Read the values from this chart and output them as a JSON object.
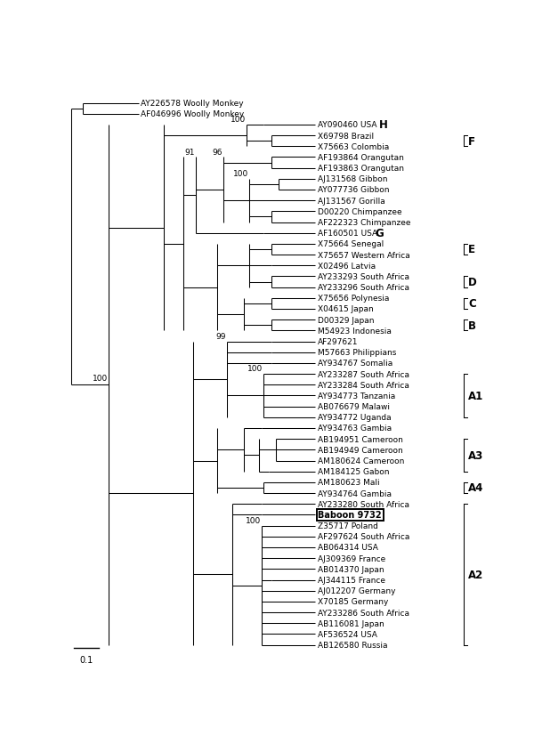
{
  "figsize": [
    6.0,
    8.37
  ],
  "dpi": 100,
  "leaves": [
    "AY226578 Woolly Monkey",
    "AF046996 Woolly Monkey",
    "AY090460 USA",
    "X69798 Brazil",
    "X75663 Colombia",
    "AF193864 Orangutan",
    "AF193863 Orangutan",
    "AJ131568 Gibbon",
    "AY077736 Gibbon",
    "AJ131567 Gorilla",
    "D00220 Chimpanzee",
    "AF222323 Chimpanzee",
    "AF160501 USA",
    "X75664 Senegal",
    "X75657 Western Africa",
    "X02496 Latvia",
    "AY233293 South Africa",
    "AY233296 South Africa",
    "X75656 Polynesia",
    "X04615 Japan",
    "D00329 Japan",
    "M54923 Indonesia",
    "AF297621",
    "M57663 Philippians",
    "AY934767 Somalia",
    "AY233287 South Africa",
    "AY233284 South Africa",
    "AY934773 Tanzania",
    "AB076679 Malawi",
    "AY934772 Uganda",
    "AY934763 Gambia",
    "AB194951 Cameroon",
    "AB194949 Cameroon",
    "AM180624 Cameroon",
    "AM184125 Gabon",
    "AM180623 Mali",
    "AY934764 Gambia",
    "AY233280 South Africa",
    "Baboon 9732",
    "Z35717 Poland",
    "AF297624 South Africa",
    "AB064314 USA",
    "AJ309369 France",
    "AB014370 Japan",
    "AJ344115 France",
    "AJ012207 Germany",
    "X70185 Germany",
    "AY233286 South Africa",
    "AB116081 Japan",
    "AF536524 USA",
    "AB126580 Russia"
  ],
  "scale_bar_label": "0.1",
  "fontsize_leaf": 6.5,
  "fontsize_bootstrap": 6.5,
  "fontsize_genotype": 8.5
}
